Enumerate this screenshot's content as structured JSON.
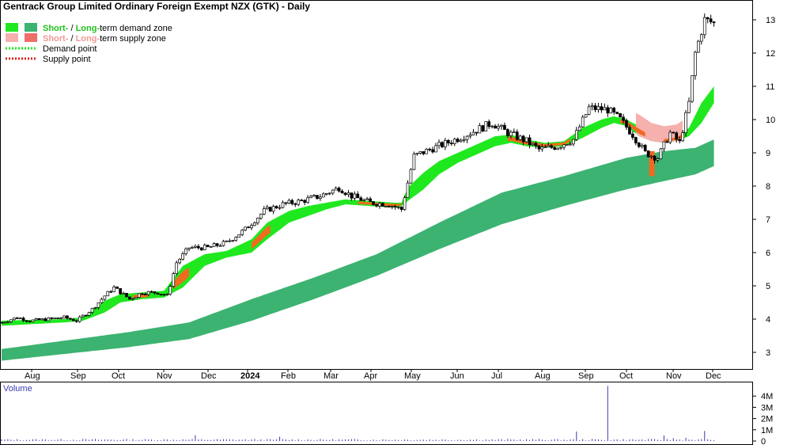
{
  "chart_data": [
    {
      "type": "candlestick",
      "title": "Gentrack Group Limited Ordinary Foreign Exempt NZX (GTK) - Daily",
      "ylim": [
        2.5,
        13.5
      ],
      "y_ticks": [
        3,
        4,
        5,
        6,
        7,
        8,
        9,
        10,
        11,
        12,
        13
      ],
      "x_ticks": [
        "Aug",
        "Sep",
        "Oct",
        "Nov",
        "Dec",
        "2024",
        "Feb",
        "Mar",
        "Apr",
        "May",
        "Jun",
        "Jul",
        "Aug",
        "Sep",
        "Oct",
        "Nov",
        "Dec"
      ],
      "grid": false,
      "legend": {
        "placement": "top-left",
        "entries": [
          {
            "short": "Short-",
            "sep": " / ",
            "long": "Long-",
            "rest": "term demand zone",
            "swatch_short": "#1fe81f",
            "swatch_long": "#3cb371",
            "word_color": "#1fd21f"
          },
          {
            "short": "Short-",
            "sep": " / ",
            "long": "Long-",
            "rest": "term supply zone",
            "swatch_short": "#f6b0ae",
            "swatch_long": "#ee6e6a",
            "word_color": "#f08c88"
          },
          {
            "label": "Demand point",
            "line_color": "#1fe81f"
          },
          {
            "label": "Supply point",
            "line_color": "#e02020"
          }
        ]
      },
      "colors": {
        "long_demand": "#3cb371",
        "short_demand": "#1fe81f",
        "short_supply": "#f6b0ae",
        "long_supply": "#f06a1f",
        "candle": "#000000"
      },
      "series": [
        {
          "type": "price_anchors",
          "points": [
            [
              0,
              3.9
            ],
            [
              5,
              4.05
            ],
            [
              9,
              3.95
            ],
            [
              15,
              4.0
            ],
            [
              20,
              4.05
            ],
            [
              24,
              3.95
            ],
            [
              29,
              4.3
            ],
            [
              33,
              4.7
            ],
            [
              36,
              4.95
            ],
            [
              41,
              4.6
            ],
            [
              45,
              4.8
            ],
            [
              50,
              4.8
            ],
            [
              53,
              4.7
            ],
            [
              56,
              5.7
            ],
            [
              60,
              6.15
            ],
            [
              66,
              6.15
            ],
            [
              72,
              6.3
            ],
            [
              78,
              6.7
            ],
            [
              84,
              7.25
            ],
            [
              90,
              7.45
            ],
            [
              96,
              7.55
            ],
            [
              102,
              7.7
            ],
            [
              108,
              7.95
            ],
            [
              112,
              7.7
            ],
            [
              118,
              7.5
            ],
            [
              124,
              7.45
            ],
            [
              128,
              7.3
            ],
            [
              132,
              8.9
            ],
            [
              137,
              9.1
            ],
            [
              144,
              9.35
            ],
            [
              150,
              9.6
            ],
            [
              157,
              9.9
            ],
            [
              162,
              9.6
            ],
            [
              168,
              9.35
            ],
            [
              172,
              9.1
            ],
            [
              178,
              9.2
            ],
            [
              183,
              9.4
            ],
            [
              188,
              10.35
            ],
            [
              194,
              10.3
            ],
            [
              198,
              10.0
            ],
            [
              202,
              9.55
            ],
            [
              206,
              9.0
            ],
            [
              210,
              8.85
            ],
            [
              214,
              9.6
            ],
            [
              217,
              9.3
            ],
            [
              220,
              10.5
            ],
            [
              222,
              12.0
            ],
            [
              225,
              13.0
            ],
            [
              228,
              12.9
            ]
          ]
        },
        {
          "type": "short_zone",
          "points": [
            [
              0,
              3.8,
              3.95
            ],
            [
              10,
              3.85,
              3.98
            ],
            [
              20,
              3.9,
              4.0
            ],
            [
              26,
              3.95,
              4.05
            ],
            [
              33,
              4.2,
              4.55
            ],
            [
              38,
              4.5,
              4.75
            ],
            [
              45,
              4.6,
              4.8
            ],
            [
              52,
              4.65,
              4.85
            ],
            [
              58,
              4.95,
              5.6
            ],
            [
              65,
              5.6,
              5.95
            ],
            [
              72,
              5.85,
              6.05
            ],
            [
              80,
              6.0,
              6.4
            ],
            [
              85,
              6.4,
              6.9
            ],
            [
              92,
              6.9,
              7.25
            ],
            [
              98,
              7.1,
              7.4
            ],
            [
              104,
              7.3,
              7.5
            ],
            [
              110,
              7.45,
              7.6
            ],
            [
              118,
              7.4,
              7.55
            ],
            [
              126,
              7.35,
              7.5
            ],
            [
              128,
              7.4,
              7.5
            ],
            [
              130,
              7.55,
              7.95
            ],
            [
              135,
              7.9,
              8.4
            ],
            [
              140,
              8.35,
              8.75
            ],
            [
              146,
              8.7,
              9.0
            ],
            [
              152,
              8.95,
              9.25
            ],
            [
              158,
              9.2,
              9.5
            ],
            [
              163,
              9.3,
              9.55
            ],
            [
              168,
              9.2,
              9.4
            ],
            [
              174,
              9.15,
              9.3
            ],
            [
              180,
              9.2,
              9.35
            ],
            [
              186,
              9.45,
              9.75
            ],
            [
              192,
              9.75,
              10.0
            ],
            [
              196,
              9.9,
              10.1
            ],
            [
              200,
              9.8,
              10.0
            ],
            [
              204,
              9.5,
              9.8
            ],
            [
              208,
              9.35,
              9.55
            ],
            [
              212,
              9.3,
              9.45
            ],
            [
              216,
              9.35,
              9.5
            ],
            [
              220,
              9.5,
              9.75
            ],
            [
              224,
              9.9,
              10.5
            ],
            [
              228,
              10.5,
              11.0
            ]
          ]
        },
        {
          "type": "long_zone",
          "points": [
            [
              0,
              2.75,
              3.1
            ],
            [
              20,
              2.95,
              3.35
            ],
            [
              40,
              3.15,
              3.6
            ],
            [
              60,
              3.4,
              3.9
            ],
            [
              80,
              3.95,
              4.6
            ],
            [
              100,
              4.6,
              5.25
            ],
            [
              120,
              5.3,
              5.95
            ],
            [
              140,
              6.1,
              6.9
            ],
            [
              160,
              6.85,
              7.8
            ],
            [
              180,
              7.4,
              8.3
            ],
            [
              200,
              7.9,
              8.85
            ],
            [
              212,
              8.15,
              9.05
            ],
            [
              222,
              8.35,
              9.15
            ],
            [
              228,
              8.6,
              9.4
            ]
          ]
        },
        {
          "type": "supply_segments",
          "ranges": [
            [
              42,
              47
            ],
            [
              55,
              60
            ],
            [
              80,
              86
            ],
            [
              114,
              128
            ],
            [
              162,
              182
            ],
            [
              198,
              206
            ],
            [
              212,
              218
            ]
          ]
        },
        {
          "type": "short_supply_fill",
          "ranges": [
            [
              203,
              218
            ]
          ]
        },
        {
          "type": "supply_bar",
          "x": 208,
          "low": 8.3,
          "high": 9.05
        }
      ],
      "volume": {
        "label": "Volume",
        "ylim": [
          0,
          5000000
        ],
        "y_ticks": [
          "4M",
          "3M",
          "2M",
          "1M",
          "0"
        ],
        "baseline": 120000,
        "spikes": [
          [
            62,
            520000
          ],
          [
            89,
            380000
          ],
          [
            184,
            850000
          ],
          [
            194,
            4900000
          ],
          [
            212,
            500000
          ],
          [
            215,
            260000
          ],
          [
            219,
            290000
          ],
          [
            225,
            900000
          ]
        ],
        "color": "#3b3bb0"
      }
    }
  ]
}
